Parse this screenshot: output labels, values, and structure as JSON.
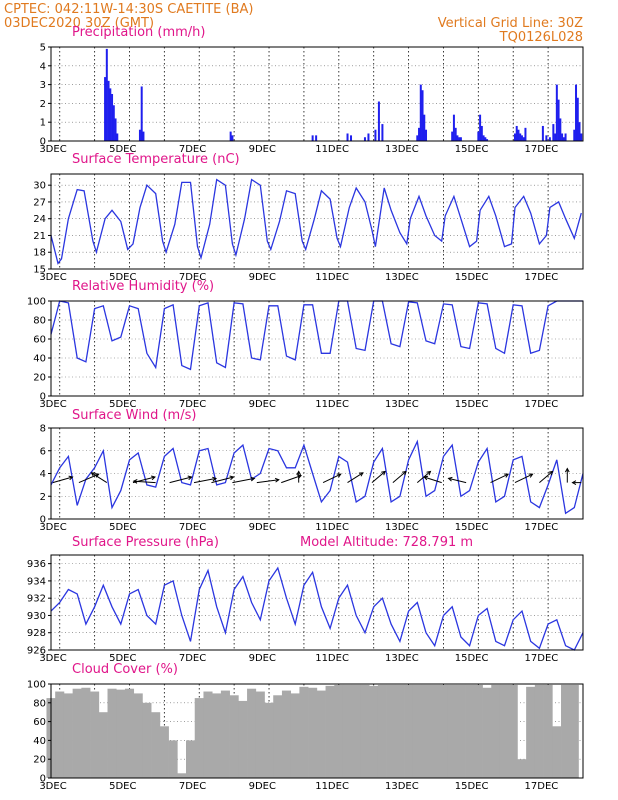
{
  "header": {
    "line1_left": "CPTEC:   042:11W-14:30S   CAETITE (BA)",
    "line2_left": "03DEC2020 30Z (GMT)",
    "line1_right": "Vertical Grid Line: 30Z",
    "line2_right": "TQ0126L028"
  },
  "colors": {
    "header": "#e07a1f",
    "title": "#e0168a",
    "series": "#2b36e0",
    "precip": "#1f1fee",
    "cloud": "#a9a9a9"
  },
  "chart_data": [
    {
      "id": "precip",
      "type": "bar",
      "title": "Precipitation (mm/h)",
      "ylim": [
        0,
        5
      ],
      "yticks": [
        0,
        1,
        2,
        3,
        4,
        5
      ],
      "xticks": [
        "3DEC",
        "5DEC",
        "7DEC",
        "9DEC",
        "11DEC",
        "13DEC",
        "15DEC",
        "17DEC"
      ],
      "xtick_day": [
        0,
        2,
        4,
        6,
        8,
        10,
        12,
        14
      ],
      "xrange_days": [
        0,
        15.25
      ],
      "grid": true,
      "x_days": [
        1.55,
        1.6,
        1.65,
        1.7,
        1.75,
        1.8,
        1.85,
        1.9,
        2.55,
        2.6,
        2.65,
        5.15,
        5.2,
        7.5,
        7.6,
        8.5,
        8.6,
        9.0,
        9.1,
        9.3,
        9.4,
        9.5,
        10.5,
        10.55,
        10.6,
        10.65,
        10.7,
        10.75,
        11.5,
        11.55,
        11.6,
        11.65,
        11.7,
        11.75,
        12.25,
        12.3,
        12.35,
        12.4,
        12.45,
        12.5,
        13.3,
        13.35,
        13.4,
        13.45,
        13.5,
        13.55,
        13.6,
        14.1,
        14.2,
        14.3,
        14.4,
        14.45,
        14.5,
        14.55,
        14.6,
        14.65,
        14.7,
        14.75,
        15.0,
        15.05,
        15.1,
        15.15,
        15.2
      ],
      "values": [
        3.4,
        4.9,
        3.2,
        2.8,
        2.5,
        1.9,
        1.2,
        0.4,
        0.6,
        2.9,
        0.5,
        0.5,
        0.3,
        0.3,
        0.3,
        0.4,
        0.3,
        0.2,
        0.4,
        0.6,
        2.1,
        0.9,
        0.3,
        0.7,
        3.0,
        2.7,
        1.4,
        0.6,
        0.5,
        1.4,
        0.7,
        0.3,
        0.2,
        0.2,
        0.5,
        1.4,
        0.8,
        0.3,
        0.2,
        0.1,
        0.4,
        0.8,
        0.6,
        0.4,
        0.3,
        0.2,
        0.7,
        0.8,
        0.3,
        0.2,
        0.9,
        0.4,
        3.0,
        2.2,
        1.2,
        0.4,
        0.2,
        0.4,
        0.6,
        3.0,
        2.3,
        1.0,
        0.4
      ]
    },
    {
      "id": "temp",
      "type": "line",
      "title": "Surface Temperature (nC)",
      "ylim": [
        15,
        32
      ],
      "yticks": [
        15,
        18,
        21,
        24,
        27,
        30
      ],
      "xticks": [
        "3DEC",
        "5DEC",
        "7DEC",
        "9DEC",
        "11DEC",
        "13DEC",
        "15DEC",
        "17DEC"
      ],
      "xtick_day": [
        0,
        2,
        4,
        6,
        8,
        10,
        12,
        14
      ],
      "xrange_days": [
        0,
        15.25
      ],
      "grid": true,
      "x_days": [
        0.0,
        0.2,
        0.3,
        0.5,
        0.75,
        0.95,
        1.2,
        1.3,
        1.55,
        1.75,
        2.0,
        2.2,
        2.35,
        2.55,
        2.75,
        3.0,
        3.2,
        3.3,
        3.55,
        3.75,
        4.0,
        4.2,
        4.3,
        4.55,
        4.75,
        5.0,
        5.2,
        5.3,
        5.55,
        5.75,
        6.0,
        6.2,
        6.3,
        6.55,
        6.75,
        7.0,
        7.2,
        7.3,
        7.55,
        7.75,
        8.0,
        8.2,
        8.3,
        8.55,
        8.75,
        9.0,
        9.2,
        9.3,
        9.55,
        9.75,
        10.0,
        10.2,
        10.3,
        10.55,
        10.75,
        11.0,
        11.2,
        11.3,
        11.55,
        11.75,
        12.0,
        12.2,
        12.3,
        12.55,
        12.75,
        13.0,
        13.2,
        13.3,
        13.55,
        13.75,
        14.0,
        14.2,
        14.3,
        14.55,
        14.75,
        15.0,
        15.2
      ],
      "values": [
        21.0,
        16.0,
        16.8,
        24.0,
        29.2,
        29.0,
        20.0,
        18.0,
        24.0,
        25.5,
        23.5,
        18.5,
        19.5,
        26.0,
        30.0,
        28.5,
        20.0,
        18.0,
        23.0,
        30.5,
        30.5,
        19.0,
        17.0,
        23.0,
        31.0,
        30.0,
        19.5,
        17.5,
        24.0,
        31.0,
        30.0,
        20.0,
        18.5,
        23.5,
        29.0,
        28.5,
        20.0,
        18.5,
        24.0,
        29.0,
        27.5,
        20.5,
        19.0,
        26.0,
        29.5,
        27.0,
        22.0,
        19.0,
        29.5,
        25.5,
        21.5,
        19.5,
        24.0,
        28.0,
        24.5,
        21.0,
        20.0,
        24.5,
        28.0,
        24.0,
        19.0,
        20.0,
        25.5,
        28.0,
        24.5,
        19.0,
        19.5,
        26.0,
        28.0,
        25.0,
        19.5,
        21.0,
        26.0,
        27.0,
        24.0,
        20.5,
        25.0
      ]
    },
    {
      "id": "rh",
      "type": "line",
      "title": "Relative Humidity (%)",
      "ylim": [
        0,
        100
      ],
      "yticks": [
        0,
        20,
        40,
        60,
        80,
        100
      ],
      "xticks": [
        "3DEC",
        "5DEC",
        "7DEC",
        "9DEC",
        "11DEC",
        "13DEC",
        "15DEC",
        "17DEC"
      ],
      "xtick_day": [
        0,
        2,
        4,
        6,
        8,
        10,
        12,
        14
      ],
      "xrange_days": [
        0,
        15.25
      ],
      "grid": true,
      "x_days": [
        0.0,
        0.25,
        0.5,
        0.75,
        1.0,
        1.25,
        1.5,
        1.75,
        2.0,
        2.25,
        2.5,
        2.75,
        3.0,
        3.25,
        3.5,
        3.75,
        4.0,
        4.25,
        4.5,
        4.75,
        5.0,
        5.25,
        5.5,
        5.75,
        6.0,
        6.25,
        6.5,
        6.75,
        7.0,
        7.25,
        7.5,
        7.75,
        8.0,
        8.25,
        8.5,
        8.75,
        9.0,
        9.25,
        9.5,
        9.75,
        10.0,
        10.25,
        10.5,
        10.75,
        11.0,
        11.25,
        11.5,
        11.75,
        12.0,
        12.25,
        12.5,
        12.75,
        13.0,
        13.25,
        13.5,
        13.75,
        14.0,
        14.25,
        14.5,
        14.75,
        15.0,
        15.25
      ],
      "values": [
        65,
        100,
        98,
        40,
        36,
        92,
        95,
        58,
        62,
        95,
        92,
        45,
        30,
        92,
        96,
        32,
        28,
        95,
        98,
        35,
        30,
        98,
        97,
        40,
        38,
        95,
        95,
        42,
        38,
        96,
        96,
        45,
        45,
        100,
        100,
        50,
        48,
        100,
        100,
        55,
        52,
        99,
        98,
        58,
        55,
        97,
        96,
        52,
        50,
        98,
        97,
        50,
        45,
        96,
        95,
        45,
        48,
        95,
        100,
        100,
        100,
        100
      ]
    },
    {
      "id": "wind",
      "type": "line",
      "title": "Surface Wind (m/s)",
      "ylim": [
        0,
        8
      ],
      "yticks": [
        0,
        2,
        4,
        6,
        8
      ],
      "xticks": [
        "3DEC",
        "5DEC",
        "7DEC",
        "9DEC",
        "11DEC",
        "13DEC",
        "15DEC",
        "17DEC"
      ],
      "xtick_day": [
        0,
        2,
        4,
        6,
        8,
        10,
        12,
        14
      ],
      "xrange_days": [
        0,
        15.25
      ],
      "grid": true,
      "x_days": [
        0.0,
        0.25,
        0.5,
        0.75,
        1.0,
        1.25,
        1.5,
        1.75,
        2.0,
        2.25,
        2.5,
        2.75,
        3.0,
        3.25,
        3.5,
        3.75,
        4.0,
        4.25,
        4.5,
        4.75,
        5.0,
        5.25,
        5.5,
        5.75,
        6.0,
        6.25,
        6.5,
        6.75,
        7.0,
        7.25,
        7.5,
        7.75,
        8.0,
        8.25,
        8.5,
        8.75,
        9.0,
        9.25,
        9.5,
        9.75,
        10.0,
        10.25,
        10.5,
        10.75,
        11.0,
        11.25,
        11.5,
        11.75,
        12.0,
        12.25,
        12.5,
        12.75,
        13.0,
        13.25,
        13.5,
        13.75,
        14.0,
        14.25,
        14.5,
        14.75,
        15.0,
        15.25
      ],
      "values": [
        3.0,
        4.5,
        5.5,
        1.2,
        3.5,
        4.5,
        6.0,
        1.0,
        2.5,
        5.2,
        5.8,
        3.0,
        2.8,
        5.5,
        6.2,
        3.2,
        3.0,
        6.0,
        6.2,
        3.0,
        3.2,
        5.8,
        6.5,
        3.5,
        4.0,
        6.2,
        6.0,
        4.5,
        4.5,
        6.5,
        4.0,
        1.5,
        2.5,
        5.5,
        5.0,
        1.5,
        2.0,
        5.0,
        6.2,
        1.5,
        2.0,
        5.2,
        6.8,
        2.0,
        2.5,
        5.5,
        6.5,
        2.0,
        2.5,
        5.0,
        6.2,
        1.5,
        2.0,
        5.2,
        5.5,
        1.5,
        1.0,
        3.0,
        5.2,
        0.5,
        1.0,
        4.0
      ],
      "vectors": {
        "x_days": [
          0.05,
          0.8,
          1.6,
          2.35,
          3.0,
          3.4,
          4.1,
          4.6,
          5.2,
          5.9,
          6.6,
          7.1,
          7.8,
          8.5,
          9.2,
          9.8,
          10.5,
          11.2,
          11.9,
          12.6,
          13.3,
          14.0,
          14.8,
          15.2
        ],
        "u": [
          0.9,
          0.9,
          -0.7,
          1.0,
          -1.0,
          1.0,
          1.0,
          1.0,
          1.0,
          1.0,
          0.9,
          0.0,
          0.8,
          0.7,
          0.6,
          0.6,
          0.6,
          -0.8,
          -0.8,
          0.8,
          0.8,
          0.6,
          0.0,
          -0.4
        ],
        "v": [
          0.4,
          0.6,
          0.7,
          0.4,
          0.1,
          0.4,
          0.3,
          0.4,
          0.3,
          0.2,
          0.5,
          0.8,
          0.6,
          0.7,
          0.8,
          0.8,
          0.8,
          0.4,
          0.3,
          0.6,
          0.6,
          0.8,
          1.0,
          0.0
        ]
      }
    },
    {
      "id": "pres",
      "type": "line",
      "title": "Surface Pressure (hPa)",
      "subtitle": "Model Altitude: 728.791 m",
      "ylim": [
        926,
        937
      ],
      "yticks": [
        926,
        928,
        930,
        932,
        934,
        936
      ],
      "xticks": [
        "3DEC",
        "5DEC",
        "7DEC",
        "9DEC",
        "11DEC",
        "13DEC",
        "15DEC",
        "17DEC"
      ],
      "xtick_day": [
        0,
        2,
        4,
        6,
        8,
        10,
        12,
        14
      ],
      "xrange_days": [
        0,
        15.25
      ],
      "grid": true,
      "x_days": [
        0.0,
        0.25,
        0.5,
        0.75,
        1.0,
        1.25,
        1.5,
        1.75,
        2.0,
        2.25,
        2.5,
        2.75,
        3.0,
        3.25,
        3.5,
        3.75,
        4.0,
        4.25,
        4.5,
        4.75,
        5.0,
        5.25,
        5.5,
        5.75,
        6.0,
        6.25,
        6.5,
        6.75,
        7.0,
        7.25,
        7.5,
        7.75,
        8.0,
        8.25,
        8.5,
        8.75,
        9.0,
        9.25,
        9.5,
        9.75,
        10.0,
        10.25,
        10.5,
        10.75,
        11.0,
        11.25,
        11.5,
        11.75,
        12.0,
        12.25,
        12.5,
        12.75,
        13.0,
        13.25,
        13.5,
        13.75,
        14.0,
        14.25,
        14.5,
        14.75,
        15.0,
        15.25
      ],
      "values": [
        930.5,
        931.5,
        933.0,
        932.5,
        929.0,
        931.0,
        933.5,
        931.0,
        929.0,
        932.5,
        933.0,
        930.0,
        929.0,
        933.5,
        934.0,
        930.0,
        927.0,
        933.0,
        935.2,
        931.0,
        928.0,
        933.0,
        934.5,
        931.5,
        929.5,
        934.0,
        935.5,
        932.0,
        929.0,
        933.5,
        935.0,
        931.0,
        928.5,
        932.0,
        933.5,
        930.0,
        928.0,
        931.0,
        932.0,
        929.0,
        927.0,
        930.5,
        931.5,
        928.0,
        926.5,
        930.0,
        931.0,
        927.5,
        926.5,
        930.0,
        930.8,
        927.0,
        926.5,
        929.5,
        930.5,
        927.0,
        926.2,
        929.0,
        929.5,
        926.5,
        926.0,
        928.0
      ]
    },
    {
      "id": "cloud",
      "type": "bar",
      "title": "Cloud Cover (%)",
      "ylim": [
        0,
        100
      ],
      "yticks": [
        0,
        20,
        40,
        60,
        80,
        100
      ],
      "xticks": [
        "3DEC",
        "5DEC",
        "7DEC",
        "9DEC",
        "11DEC",
        "13DEC",
        "15DEC",
        "17DEC"
      ],
      "xtick_day": [
        0,
        2,
        4,
        6,
        8,
        10,
        12,
        14
      ],
      "xrange_days": [
        0,
        15.25
      ],
      "grid": true,
      "x_days": [
        0.0,
        0.25,
        0.5,
        0.75,
        1.0,
        1.25,
        1.5,
        1.75,
        2.0,
        2.25,
        2.5,
        2.75,
        3.0,
        3.25,
        3.5,
        3.75,
        4.0,
        4.25,
        4.5,
        4.75,
        5.0,
        5.25,
        5.5,
        5.75,
        6.0,
        6.25,
        6.5,
        6.75,
        7.0,
        7.25,
        7.5,
        7.75,
        8.0,
        8.25,
        8.5,
        8.75,
        9.0,
        9.25,
        9.5,
        9.75,
        10.0,
        10.25,
        10.5,
        10.75,
        11.0,
        11.25,
        11.5,
        11.75,
        12.0,
        12.25,
        12.5,
        12.75,
        13.0,
        13.25,
        13.5,
        13.75,
        14.0,
        14.25,
        14.5,
        14.75,
        15.0
      ],
      "values": [
        85,
        92,
        90,
        95,
        96,
        92,
        70,
        95,
        94,
        95,
        90,
        80,
        70,
        55,
        40,
        5,
        40,
        85,
        92,
        90,
        93,
        88,
        82,
        95,
        92,
        80,
        88,
        93,
        90,
        97,
        96,
        93,
        98,
        99,
        99,
        99,
        99,
        98,
        99,
        99,
        99,
        99,
        99,
        99,
        99,
        99,
        99,
        99,
        99,
        99,
        96,
        99,
        99,
        99,
        20,
        97,
        99,
        99,
        55,
        99,
        99
      ]
    }
  ]
}
